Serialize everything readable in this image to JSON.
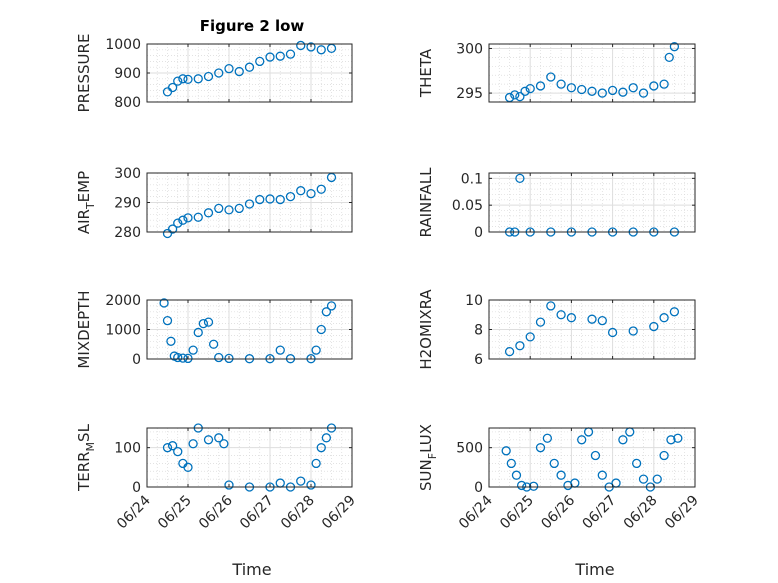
{
  "figure": {
    "title": "Figure 2 low",
    "xlabel": "Time",
    "marker_color": "#0072BD"
  },
  "chart_data": [
    {
      "type": "scatter",
      "name": "pressure",
      "ylabel": "PRESSURE",
      "xlim": [
        "06/24",
        "06/29"
      ],
      "ylim": [
        800,
        1000
      ],
      "yticks": [
        800,
        900,
        1000
      ],
      "xticks": [
        "06/24",
        "06/25",
        "06/26",
        "06/27",
        "06/28",
        "06/29"
      ],
      "grid": true,
      "show_xticklabels": false,
      "x": [
        "06/24 12:00",
        "06/24 15:00",
        "06/24 18:00",
        "06/24 21:00",
        "06/25 00:00",
        "06/25 06:00",
        "06/25 12:00",
        "06/25 18:00",
        "06/26 00:00",
        "06/26 06:00",
        "06/26 12:00",
        "06/26 18:00",
        "06/27 00:00",
        "06/27 06:00",
        "06/27 12:00",
        "06/27 18:00",
        "06/28 00:00",
        "06/28 06:00",
        "06/28 12:00"
      ],
      "y": [
        835,
        850,
        872,
        880,
        878,
        880,
        888,
        900,
        915,
        905,
        920,
        940,
        955,
        958,
        965,
        995,
        990,
        980,
        985
      ]
    },
    {
      "type": "scatter",
      "name": "theta",
      "ylabel": "THETA",
      "xlim": [
        "06/24",
        "06/29"
      ],
      "ylim": [
        294,
        300.5
      ],
      "yticks": [
        295,
        300
      ],
      "xticks": [
        "06/24",
        "06/25",
        "06/26",
        "06/27",
        "06/28",
        "06/29"
      ],
      "grid": true,
      "show_xticklabels": false,
      "x": [
        "06/24 12:00",
        "06/24 15:00",
        "06/24 18:00",
        "06/24 21:00",
        "06/25 00:00",
        "06/25 06:00",
        "06/25 12:00",
        "06/25 18:00",
        "06/26 00:00",
        "06/26 06:00",
        "06/26 12:00",
        "06/26 18:00",
        "06/27 00:00",
        "06/27 06:00",
        "06/27 12:00",
        "06/27 18:00",
        "06/28 00:00",
        "06/28 06:00",
        "06/28 09:00",
        "06/28 12:00"
      ],
      "y": [
        294.5,
        294.8,
        294.6,
        295.2,
        295.5,
        295.8,
        296.8,
        296.0,
        295.6,
        295.4,
        295.2,
        295.0,
        295.3,
        295.1,
        295.6,
        295.0,
        295.8,
        296.0,
        299.0,
        300.2
      ]
    },
    {
      "type": "scatter",
      "name": "air-temp",
      "ylabel": "AIR_TEMP",
      "xlim": [
        "06/24",
        "06/29"
      ],
      "ylim": [
        280,
        300
      ],
      "yticks": [
        280,
        290,
        300
      ],
      "xticks": [
        "06/24",
        "06/25",
        "06/26",
        "06/27",
        "06/28",
        "06/29"
      ],
      "grid": true,
      "show_xticklabels": false,
      "x": [
        "06/24 12:00",
        "06/24 15:00",
        "06/24 18:00",
        "06/24 21:00",
        "06/25 00:00",
        "06/25 06:00",
        "06/25 12:00",
        "06/25 18:00",
        "06/26 00:00",
        "06/26 06:00",
        "06/26 12:00",
        "06/26 18:00",
        "06/27 00:00",
        "06/27 06:00",
        "06/27 12:00",
        "06/27 18:00",
        "06/28 00:00",
        "06/28 06:00",
        "06/28 12:00"
      ],
      "y": [
        279.5,
        281.0,
        283.0,
        284.0,
        284.8,
        285.0,
        286.5,
        288.0,
        287.5,
        288.0,
        289.5,
        291.0,
        291.2,
        291.0,
        292.0,
        294.0,
        293.0,
        294.5,
        298.5
      ]
    },
    {
      "type": "scatter",
      "name": "rainfall",
      "ylabel": "RAINFALL",
      "xlim": [
        "06/24",
        "06/29"
      ],
      "ylim": [
        0,
        0.11
      ],
      "yticks": [
        0,
        0.05,
        0.1
      ],
      "xticks": [
        "06/24",
        "06/25",
        "06/26",
        "06/27",
        "06/28",
        "06/29"
      ],
      "grid": true,
      "show_xticklabels": false,
      "x": [
        "06/24 12:00",
        "06/24 15:00",
        "06/24 18:00",
        "06/25 00:00",
        "06/25 12:00",
        "06/26 00:00",
        "06/26 12:00",
        "06/27 00:00",
        "06/27 12:00",
        "06/28 00:00",
        "06/28 12:00"
      ],
      "y": [
        0,
        0,
        0.1,
        0,
        0,
        0,
        0,
        0,
        0,
        0,
        0
      ]
    },
    {
      "type": "scatter",
      "name": "mixdepth",
      "ylabel": "MIXDEPTH",
      "xlim": [
        "06/24",
        "06/29"
      ],
      "ylim": [
        0,
        2000
      ],
      "yticks": [
        0,
        1000,
        2000
      ],
      "xticks": [
        "06/24",
        "06/25",
        "06/26",
        "06/27",
        "06/28",
        "06/29"
      ],
      "grid": true,
      "show_xticklabels": false,
      "x": [
        "06/24 10:00",
        "06/24 12:00",
        "06/24 14:00",
        "06/24 16:00",
        "06/24 18:00",
        "06/24 21:00",
        "06/25 00:00",
        "06/25 03:00",
        "06/25 06:00",
        "06/25 09:00",
        "06/25 12:00",
        "06/25 15:00",
        "06/25 18:00",
        "06/26 00:00",
        "06/26 12:00",
        "06/27 00:00",
        "06/27 06:00",
        "06/27 12:00",
        "06/28 00:00",
        "06/28 03:00",
        "06/28 06:00",
        "06/28 09:00",
        "06/28 12:00"
      ],
      "y": [
        1900,
        1300,
        600,
        100,
        50,
        30,
        20,
        300,
        900,
        1200,
        1250,
        500,
        50,
        20,
        10,
        10,
        300,
        10,
        10,
        300,
        1000,
        1600,
        1800
      ]
    },
    {
      "type": "scatter",
      "name": "h2omixra",
      "ylabel": "H2OMIXRA",
      "xlim": [
        "06/24",
        "06/29"
      ],
      "ylim": [
        6,
        10
      ],
      "yticks": [
        6,
        8,
        10
      ],
      "xticks": [
        "06/24",
        "06/25",
        "06/26",
        "06/27",
        "06/28",
        "06/29"
      ],
      "grid": true,
      "show_xticklabels": false,
      "x": [
        "06/24 12:00",
        "06/24 18:00",
        "06/25 00:00",
        "06/25 06:00",
        "06/25 12:00",
        "06/25 18:00",
        "06/26 00:00",
        "06/26 12:00",
        "06/26 18:00",
        "06/27 00:00",
        "06/27 12:00",
        "06/28 00:00",
        "06/28 06:00",
        "06/28 12:00"
      ],
      "y": [
        6.5,
        6.9,
        7.5,
        8.5,
        9.6,
        9.0,
        8.8,
        8.7,
        8.6,
        7.8,
        7.9,
        8.2,
        8.8,
        9.2
      ]
    },
    {
      "type": "scatter",
      "name": "terr-msl",
      "ylabel": "TERR_MSL",
      "xlim": [
        "06/24",
        "06/29"
      ],
      "ylim": [
        0,
        150
      ],
      "yticks": [
        0,
        100
      ],
      "xticks": [
        "06/24",
        "06/25",
        "06/26",
        "06/27",
        "06/28",
        "06/29"
      ],
      "grid": true,
      "show_xticklabels": true,
      "x": [
        "06/24 12:00",
        "06/24 15:00",
        "06/24 18:00",
        "06/24 21:00",
        "06/25 00:00",
        "06/25 03:00",
        "06/25 06:00",
        "06/25 12:00",
        "06/25 18:00",
        "06/25 21:00",
        "06/26 00:00",
        "06/26 12:00",
        "06/27 00:00",
        "06/27 06:00",
        "06/27 12:00",
        "06/27 18:00",
        "06/28 00:00",
        "06/28 03:00",
        "06/28 06:00",
        "06/28 09:00",
        "06/28 12:00"
      ],
      "y": [
        100,
        105,
        90,
        60,
        50,
        110,
        150,
        120,
        125,
        110,
        5,
        0,
        0,
        10,
        0,
        15,
        5,
        60,
        100,
        125,
        150
      ]
    },
    {
      "type": "scatter",
      "name": "sun-flux",
      "ylabel": "SUN_FLUX",
      "xlim": [
        "06/24",
        "06/29"
      ],
      "ylim": [
        0,
        750
      ],
      "yticks": [
        0,
        500
      ],
      "xticks": [
        "06/24",
        "06/25",
        "06/26",
        "06/27",
        "06/28",
        "06/29"
      ],
      "grid": true,
      "show_xticklabels": true,
      "x": [
        "06/24 10:00",
        "06/24 13:00",
        "06/24 16:00",
        "06/24 19:00",
        "06/24 22:00",
        "06/25 02:00",
        "06/25 06:00",
        "06/25 10:00",
        "06/25 14:00",
        "06/25 18:00",
        "06/25 22:00",
        "06/26 02:00",
        "06/26 06:00",
        "06/26 10:00",
        "06/26 14:00",
        "06/26 18:00",
        "06/26 22:00",
        "06/27 02:00",
        "06/27 06:00",
        "06/27 10:00",
        "06/27 14:00",
        "06/27 18:00",
        "06/27 22:00",
        "06/28 02:00",
        "06/28 06:00",
        "06/28 10:00",
        "06/28 14:00"
      ],
      "y": [
        460,
        300,
        150,
        20,
        0,
        10,
        500,
        620,
        300,
        150,
        20,
        50,
        600,
        700,
        400,
        150,
        0,
        50,
        600,
        700,
        300,
        100,
        0,
        100,
        400,
        600,
        620
      ]
    }
  ]
}
